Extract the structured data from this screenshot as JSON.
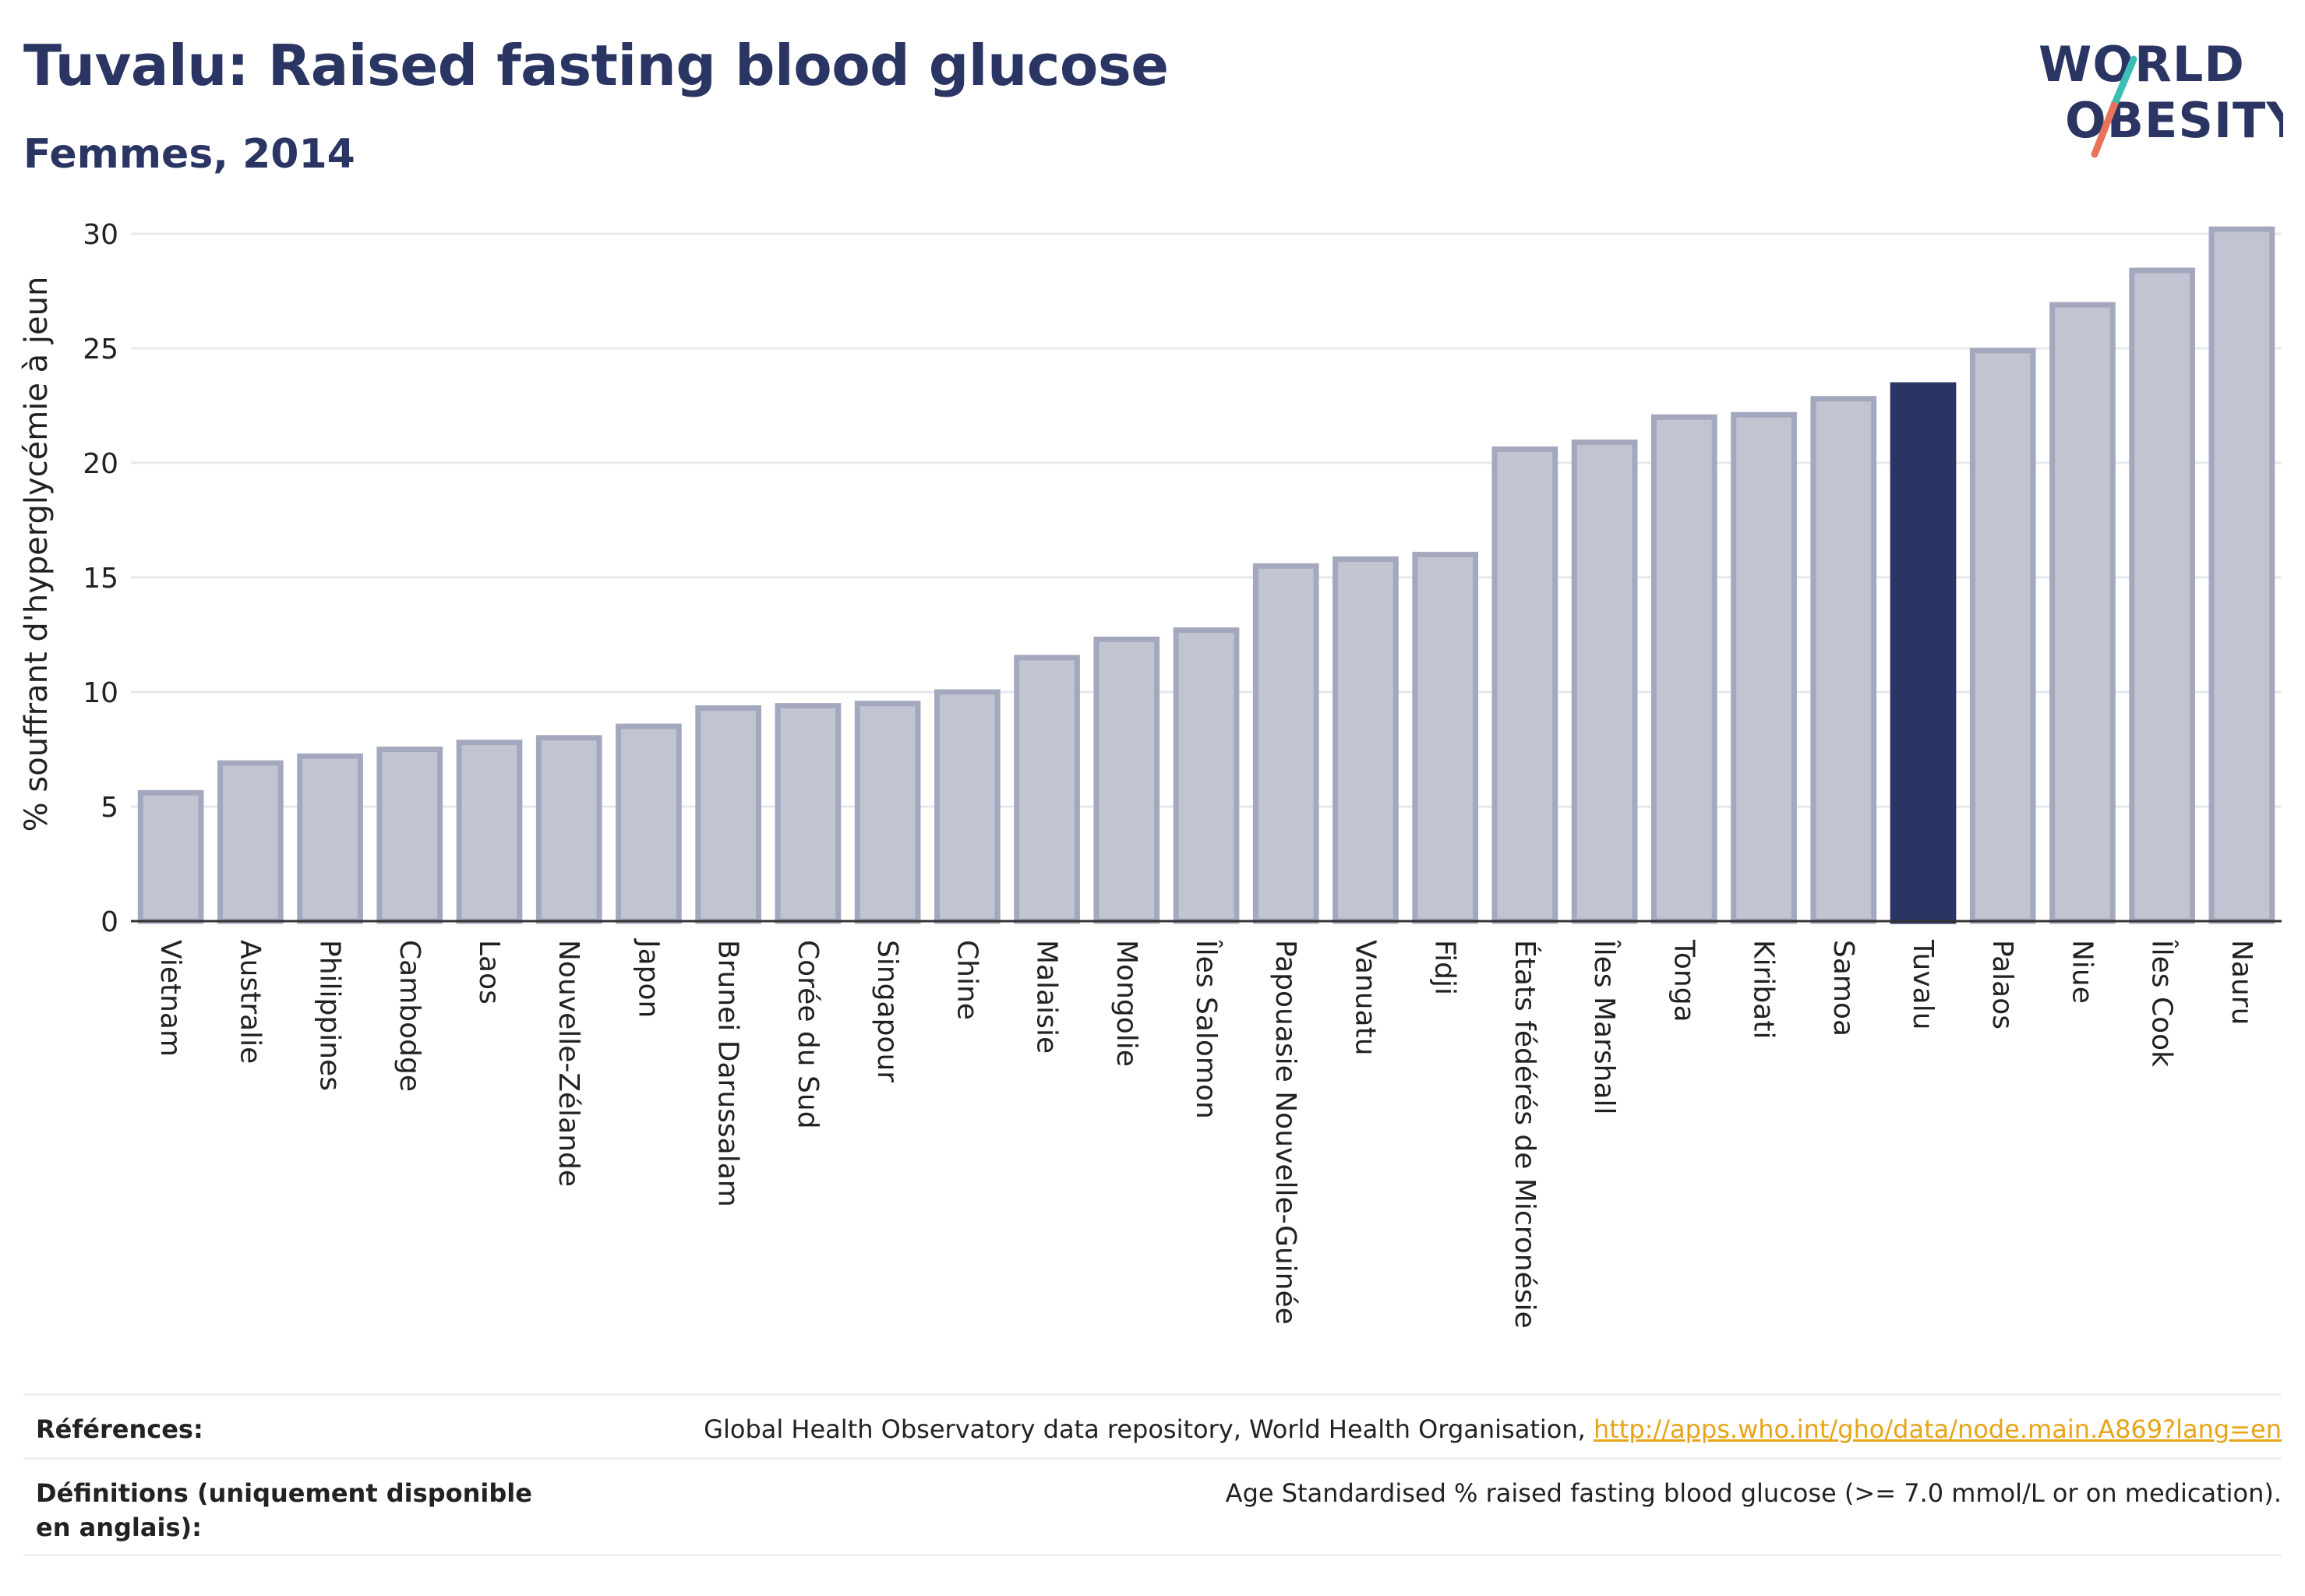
{
  "header": {
    "title": "Tuvalu: Raised fasting blood glucose",
    "subtitle": "Femmes, 2014"
  },
  "logo": {
    "line1": "WORLD",
    "line2": "OBESITY",
    "colors": {
      "text": "#2a3563",
      "slash_teal": "#3bbfb5",
      "slash_coral": "#e8735a"
    }
  },
  "chart_data": {
    "type": "bar",
    "ylabel": "% souffrant d'hyperglycémie à jeun",
    "ylim": [
      0,
      30
    ],
    "yticks": [
      0,
      5,
      10,
      15,
      20,
      25,
      30
    ],
    "grid": true,
    "highlight": "Tuvalu",
    "colors": {
      "bar": "#c1c4d1",
      "bar_border": "#a3a8be",
      "highlight": "#2a3563",
      "grid": "#e6e8ee",
      "axis": "#333333"
    },
    "categories": [
      "Vietnam",
      "Australie",
      "Philippines",
      "Cambodge",
      "Laos",
      "Nouvelle-Zélande",
      "Japon",
      "Brunei Darussalam",
      "Corée du Sud",
      "Singapour",
      "Chine",
      "Malaisie",
      "Mongolie",
      "Îles Salomon",
      "Papouasie Nouvelle-Guinée",
      "Vanuatu",
      "Fidji",
      "États fédérés de Micronésie",
      "Îles Marshall",
      "Tonga",
      "Kiribati",
      "Samoa",
      "Tuvalu",
      "Palaos",
      "Niue",
      "Îles Cook",
      "Nauru"
    ],
    "values": [
      5.6,
      6.9,
      7.2,
      7.5,
      7.8,
      8.0,
      8.5,
      9.3,
      9.4,
      9.5,
      10.0,
      11.5,
      12.3,
      12.7,
      15.5,
      15.8,
      16.0,
      20.6,
      20.9,
      22.0,
      22.1,
      22.8,
      23.4,
      24.9,
      26.9,
      28.4,
      30.2
    ]
  },
  "footer": {
    "references_label": "Références:",
    "references_text": "Global Health Observatory data repository, World Health Organisation, ",
    "references_link": "http://apps.who.int/gho/data/node.main.A869?lang=en",
    "definitions_label": "Définitions (uniquement disponible en anglais):",
    "definitions_text": "Age Standardised % raised fasting blood glucose (>= 7.0 mmol/L or on medication)."
  }
}
